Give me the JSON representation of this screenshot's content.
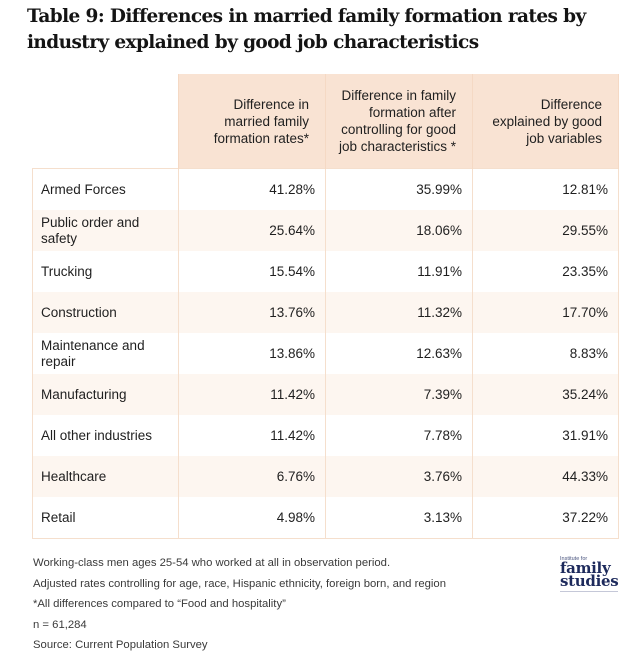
{
  "title": "Table 9: Differences in married family formation rates by industry explained by good job characteristics",
  "table": {
    "headers": [
      "",
      "Difference in married family formation rates*",
      "Difference in family formation after controlling for good job characteristics *",
      "Difference explained by good job variables"
    ],
    "rows": [
      {
        "industry": "Armed Forces",
        "diff": "41.28%",
        "diff_controlled": "35.99%",
        "explained": "12.81%"
      },
      {
        "industry": "Public order and safety",
        "diff": "25.64%",
        "diff_controlled": "18.06%",
        "explained": "29.55%"
      },
      {
        "industry": "Trucking",
        "diff": "15.54%",
        "diff_controlled": "11.91%",
        "explained": "23.35%"
      },
      {
        "industry": "Construction",
        "diff": "13.76%",
        "diff_controlled": "11.32%",
        "explained": "17.70%"
      },
      {
        "industry": "Maintenance and repair",
        "diff": "13.86%",
        "diff_controlled": "12.63%",
        "explained": "8.83%"
      },
      {
        "industry": "Manufacturing",
        "diff": "11.42%",
        "diff_controlled": "7.39%",
        "explained": "35.24%"
      },
      {
        "industry": "All other industries",
        "diff": "11.42%",
        "diff_controlled": "7.78%",
        "explained": "31.91%"
      },
      {
        "industry": "Healthcare",
        "diff": "6.76%",
        "diff_controlled": "3.76%",
        "explained": "44.33%"
      },
      {
        "industry": "Retail",
        "diff": "4.98%",
        "diff_controlled": "3.13%",
        "explained": "37.22%"
      }
    ]
  },
  "notes": [
    "Working-class men ages 25-54 who worked at all in observation period.",
    "Adjusted rates controlling for age, race, Hispanic ethnicity, foreign born, and region",
    "*All differences compared to “Food and hospitality”",
    "n = 61,284",
    "Source: Current Population Survey"
  ],
  "logo": {
    "institute": "Institute for",
    "line1": "family",
    "line2": "studies"
  },
  "colors": {
    "header_bg": "#f9e3d3",
    "stripe_bg": "#fdf6f0",
    "border": "#f5dfcd",
    "logo": "#1d2a5c"
  }
}
